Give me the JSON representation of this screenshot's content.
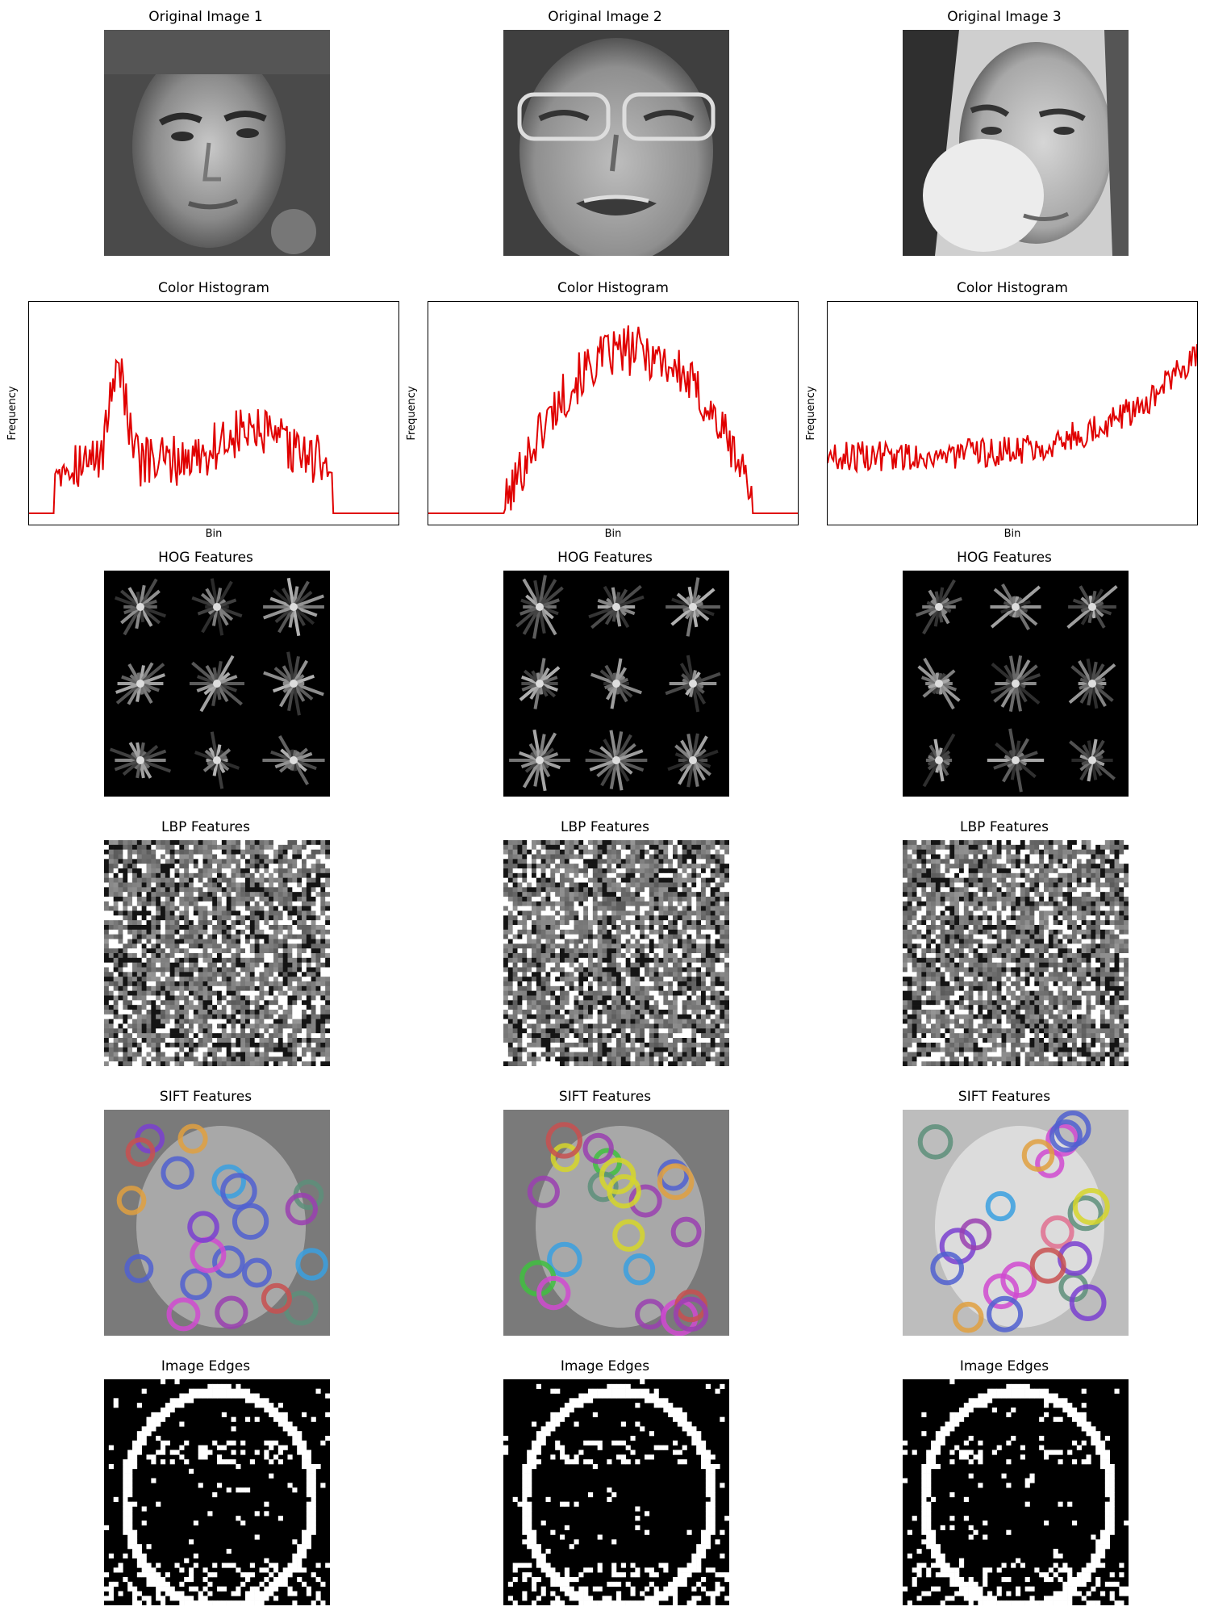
{
  "rows": [
    {
      "kind": "original",
      "titles": [
        "Original Image 1",
        "Original Image 2",
        "Original Image 3"
      ]
    },
    {
      "kind": "histogram",
      "titles": [
        "Color Histogram",
        "Color Histogram",
        "Color Histogram"
      ],
      "xlabel": "Bin",
      "ylabel": "Frequency"
    },
    {
      "kind": "hog",
      "titles": [
        "HOG Features",
        "HOG Features",
        "HOG Features"
      ]
    },
    {
      "kind": "lbp",
      "titles": [
        "LBP Features",
        "LBP Features",
        "LBP Features"
      ]
    },
    {
      "kind": "sift",
      "titles": [
        "SIFT Features",
        "SIFT Features",
        "SIFT Features"
      ]
    },
    {
      "kind": "edges",
      "titles": [
        "Image Edges",
        "Image Edges",
        "Image Edges"
      ]
    }
  ],
  "colors": {
    "histogram_line": "#e00000",
    "frame": "#000000"
  }
}
